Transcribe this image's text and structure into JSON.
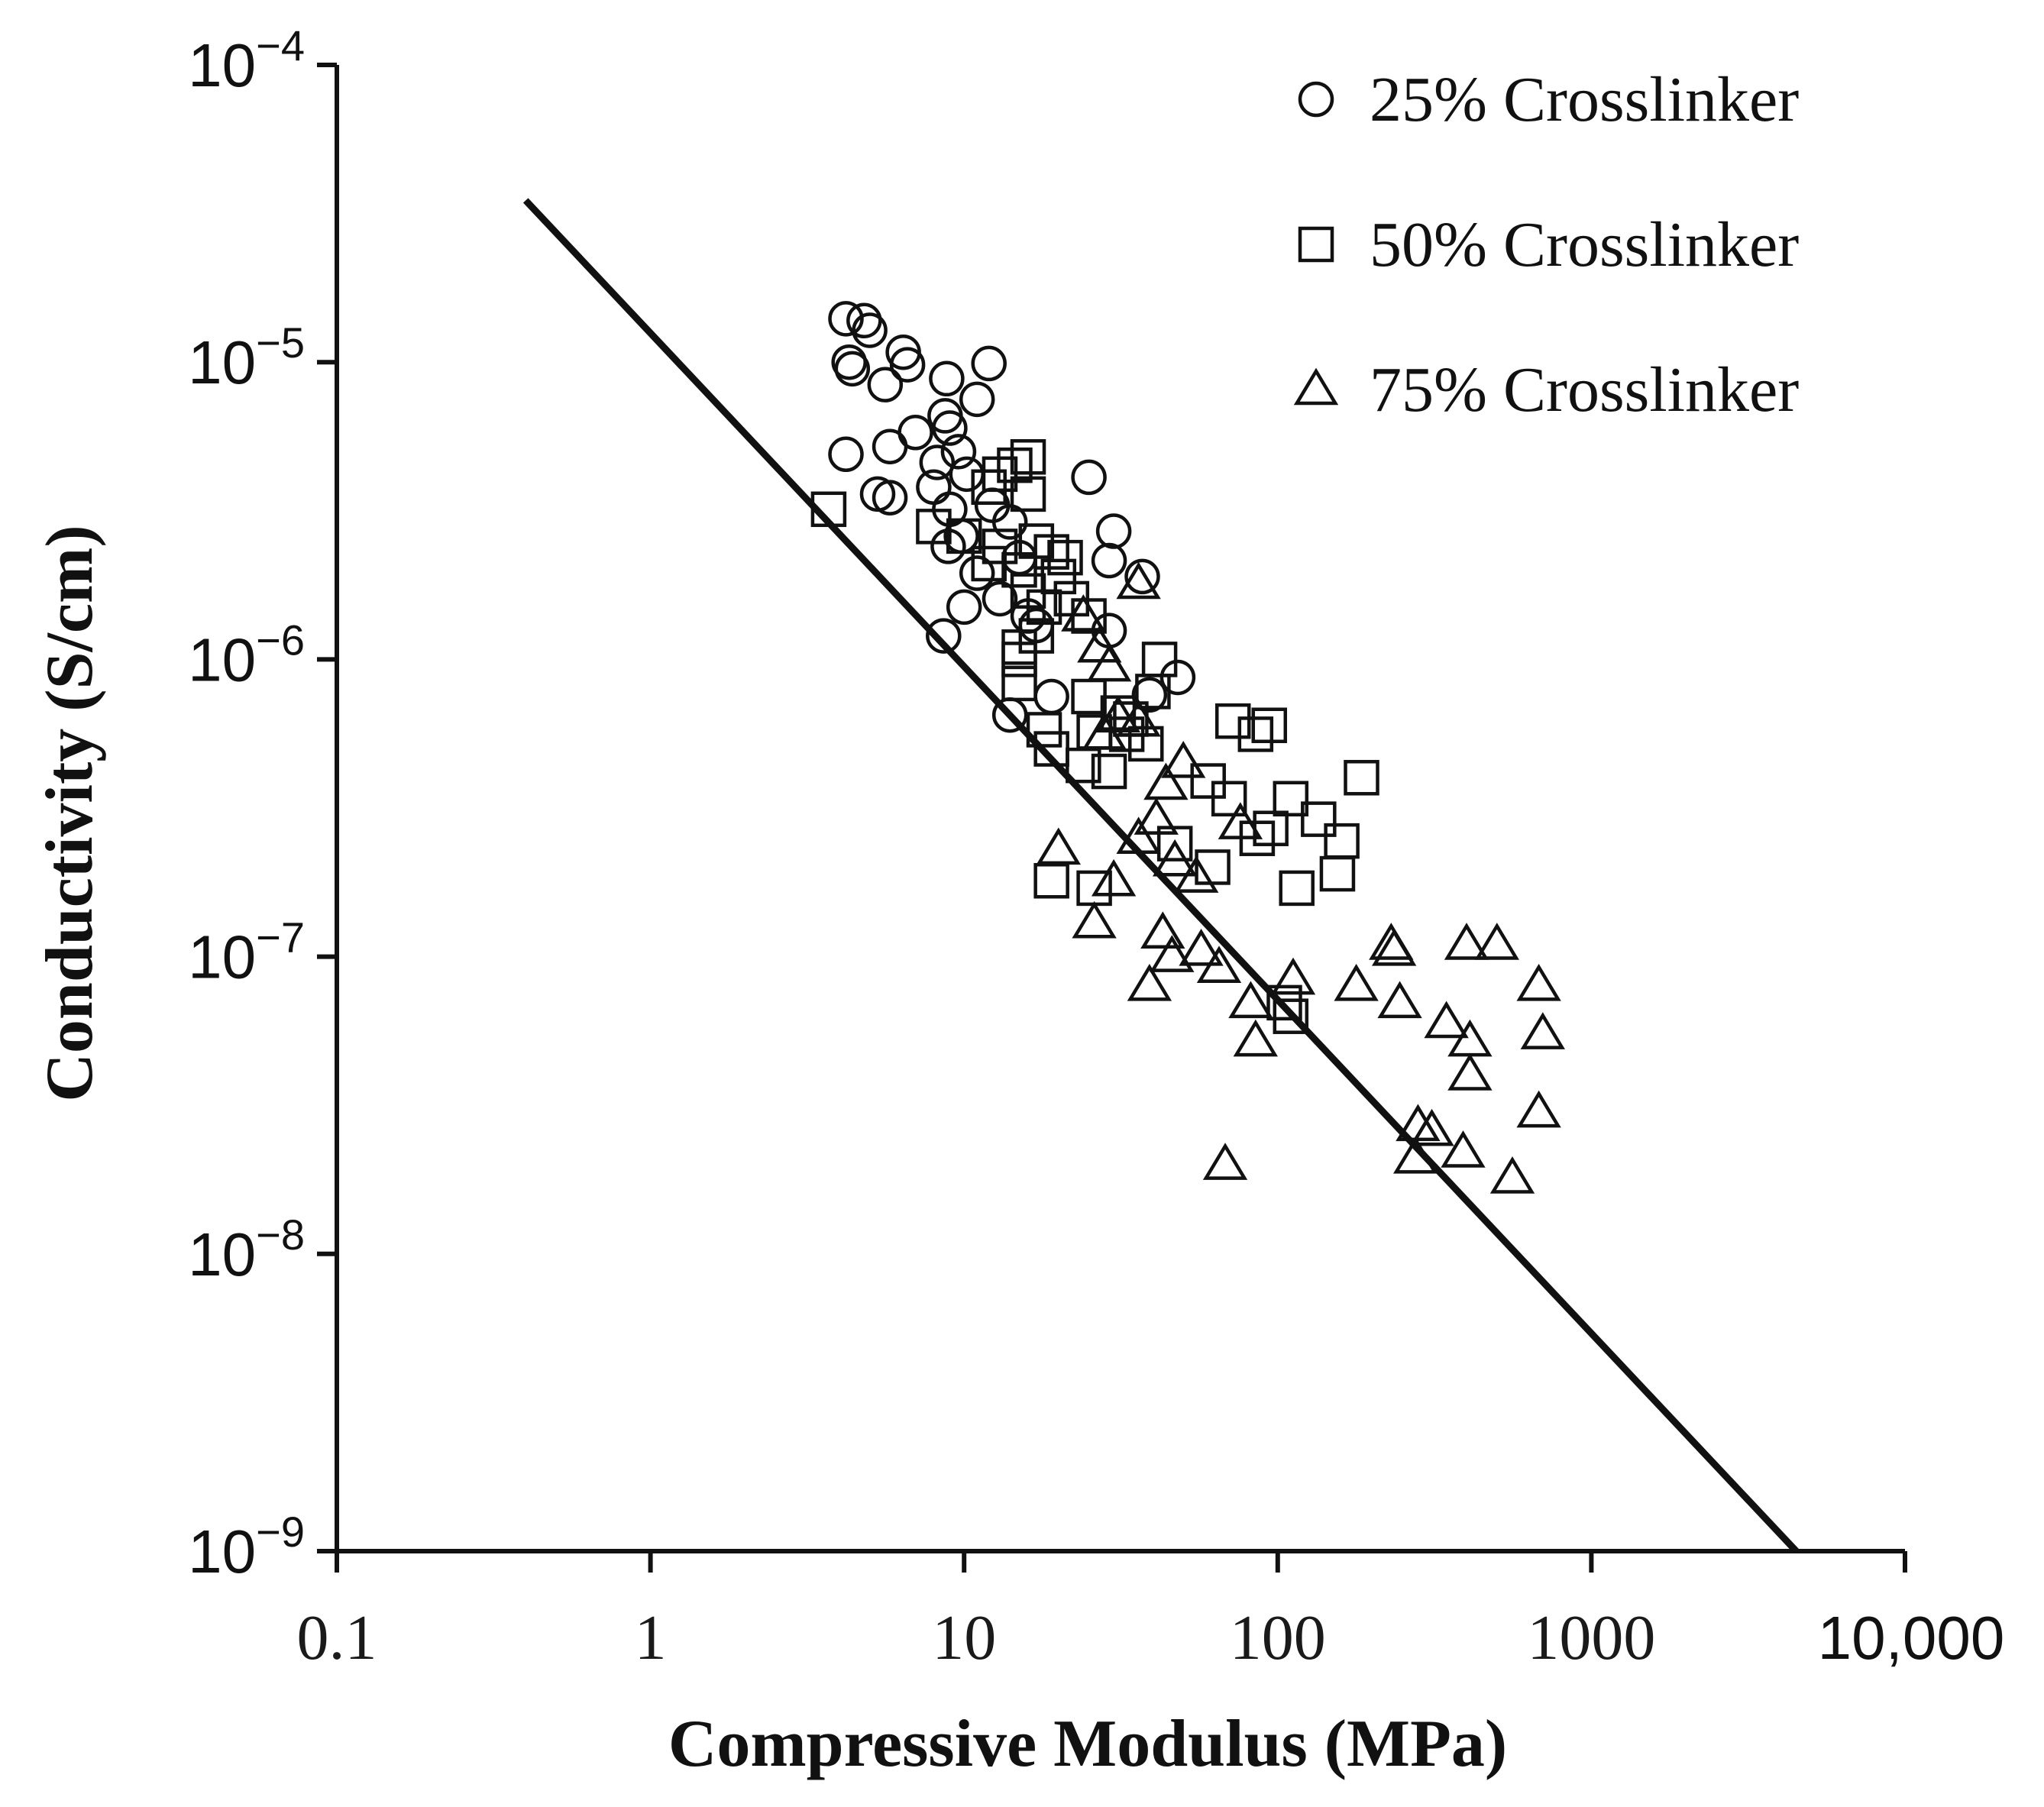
{
  "chart_data": {
    "type": "scatter",
    "title": "",
    "xlabel": "Compressive Modulus (MPa)",
    "ylabel": "Conductivity (S/cm)",
    "xscale": "log",
    "yscale": "log",
    "xlim": [
      0.1,
      10000
    ],
    "ylim": [
      1e-09,
      0.0001
    ],
    "grid": false,
    "legend_position": "top-right",
    "x_ticks": [
      {
        "value": 0.1,
        "label": "0.1"
      },
      {
        "value": 1,
        "label": "1"
      },
      {
        "value": 10,
        "label": "10"
      },
      {
        "value": 100,
        "label": "100"
      },
      {
        "value": 1000,
        "label": "1000"
      },
      {
        "value": 10000,
        "label": "10,000"
      }
    ],
    "y_ticks": [
      {
        "value": 1e-09,
        "base": "10",
        "exp": "−9"
      },
      {
        "value": 1e-08,
        "base": "10",
        "exp": "−8"
      },
      {
        "value": 1e-07,
        "base": "10",
        "exp": "−7"
      },
      {
        "value": 1e-06,
        "base": "10",
        "exp": "−6"
      },
      {
        "value": 1e-05,
        "base": "10",
        "exp": "−5"
      },
      {
        "value": 0.0001,
        "base": "10",
        "exp": "−4"
      }
    ],
    "fit_line": {
      "x": [
        0.4,
        4500
      ],
      "y": [
        3.5e-05,
        1e-09
      ]
    },
    "series": [
      {
        "name": "25% Crosslinker",
        "marker": "circle",
        "points": [
          [
            4.2,
            1.4e-05
          ],
          [
            4.8,
            1.38e-05
          ],
          [
            5.0,
            1.28e-05
          ],
          [
            4.3,
            1e-05
          ],
          [
            4.4,
            9.5e-06
          ],
          [
            6.4,
            1.08e-05
          ],
          [
            6.6,
            9.8e-06
          ],
          [
            12.0,
            9.9e-06
          ],
          [
            5.6,
            8.4e-06
          ],
          [
            8.8,
            8.8e-06
          ],
          [
            11.0,
            7.5e-06
          ],
          [
            8.7,
            6.6e-06
          ],
          [
            9.0,
            6e-06
          ],
          [
            7.0,
            5.8e-06
          ],
          [
            5.8,
            5.2e-06
          ],
          [
            4.2,
            4.9e-06
          ],
          [
            8.2,
            4.6e-06
          ],
          [
            9.6,
            5e-06
          ],
          [
            10.2,
            4.2e-06
          ],
          [
            25.0,
            4.1e-06
          ],
          [
            8.0,
            3.8e-06
          ],
          [
            5.3,
            3.6e-06
          ],
          [
            5.8,
            3.5e-06
          ],
          [
            9.0,
            3.2e-06
          ],
          [
            12.3,
            3.3e-06
          ],
          [
            14.0,
            2.9e-06
          ],
          [
            9.8,
            2.6e-06
          ],
          [
            8.9,
            2.4e-06
          ],
          [
            30.0,
            2.7e-06
          ],
          [
            29.0,
            2.15e-06
          ],
          [
            37.0,
            1.9e-06
          ],
          [
            15.0,
            2.2e-06
          ],
          [
            11.0,
            1.95e-06
          ],
          [
            13.0,
            1.6e-06
          ],
          [
            10.0,
            1.5e-06
          ],
          [
            17.0,
            1.3e-06
          ],
          [
            29.0,
            1.25e-06
          ],
          [
            8.6,
            1.2e-06
          ],
          [
            48.0,
            8.7e-07
          ],
          [
            39.0,
            7.6e-07
          ],
          [
            19.0,
            7.5e-07
          ],
          [
            14.0,
            6.5e-07
          ],
          [
            16.0,
            1.4e-06
          ]
        ]
      },
      {
        "name": "50% Crosslinker",
        "marker": "square",
        "points": [
          [
            3.7,
            3.2e-06
          ],
          [
            16.0,
            4.8e-06
          ],
          [
            14.5,
            4.5e-06
          ],
          [
            13.0,
            4.2e-06
          ],
          [
            12.0,
            3.8e-06
          ],
          [
            16.0,
            3.6e-06
          ],
          [
            8.0,
            2.8e-06
          ],
          [
            10.0,
            2.6e-06
          ],
          [
            13.0,
            2.4e-06
          ],
          [
            17.0,
            2.5e-06
          ],
          [
            19.0,
            2.3e-06
          ],
          [
            21.0,
            2.2e-06
          ],
          [
            12.0,
            2.1e-06
          ],
          [
            15.0,
            2e-06
          ],
          [
            20.0,
            1.9e-06
          ],
          [
            16.0,
            1.7e-06
          ],
          [
            22.0,
            1.6e-06
          ],
          [
            18.0,
            1.5e-06
          ],
          [
            25.0,
            1.4e-06
          ],
          [
            17.0,
            1.2e-06
          ],
          [
            15.0,
            1.1e-06
          ],
          [
            15.0,
            1e-06
          ],
          [
            42.0,
            1e-06
          ],
          [
            15.0,
            8.3e-07
          ],
          [
            25.0,
            7.5e-07
          ],
          [
            40.0,
            7.8e-07
          ],
          [
            31.0,
            6.6e-07
          ],
          [
            34.0,
            6.3e-07
          ],
          [
            18.0,
            5.8e-07
          ],
          [
            26.0,
            5.7e-07
          ],
          [
            33.0,
            5.6e-07
          ],
          [
            38.0,
            5.2e-07
          ],
          [
            19.0,
            5e-07
          ],
          [
            24.0,
            4.4e-07
          ],
          [
            29.0,
            4.2e-07
          ],
          [
            72.0,
            6.2e-07
          ],
          [
            94.0,
            6e-07
          ],
          [
            85.0,
            5.6e-07
          ],
          [
            185.0,
            4e-07
          ],
          [
            60.0,
            3.9e-07
          ],
          [
            70.0,
            3.4e-07
          ],
          [
            110.0,
            3.4e-07
          ],
          [
            135.0,
            2.9e-07
          ],
          [
            47.0,
            2.4e-07
          ],
          [
            95.0,
            2.7e-07
          ],
          [
            86.0,
            2.5e-07
          ],
          [
            160.0,
            2.45e-07
          ],
          [
            62.0,
            2e-07
          ],
          [
            155.0,
            1.9e-07
          ],
          [
            19.0,
            1.8e-07
          ],
          [
            26.0,
            1.7e-07
          ],
          [
            115.0,
            1.7e-07
          ],
          [
            110.0,
            6.3e-08
          ],
          [
            105.0,
            7e-08
          ]
        ]
      },
      {
        "name": "75% Crosslinker",
        "marker": "triangle",
        "points": [
          [
            36.0,
            1.8e-06
          ],
          [
            24.0,
            1.4e-06
          ],
          [
            27.0,
            1.1e-06
          ],
          [
            29.0,
            9.5e-07
          ],
          [
            31.0,
            6.4e-07
          ],
          [
            36.0,
            6.2e-07
          ],
          [
            28.0,
            5.6e-07
          ],
          [
            50.0,
            4.5e-07
          ],
          [
            44.0,
            3.8e-07
          ],
          [
            41.0,
            2.9e-07
          ],
          [
            36.0,
            2.5e-07
          ],
          [
            20.0,
            2.3e-07
          ],
          [
            47.0,
            2.1e-07
          ],
          [
            55.0,
            1.85e-07
          ],
          [
            30.0,
            1.8e-07
          ],
          [
            76.0,
            2.8e-07
          ],
          [
            26.0,
            1.3e-07
          ],
          [
            43.0,
            1.2e-07
          ],
          [
            57.0,
            1.05e-07
          ],
          [
            46.0,
            1e-07
          ],
          [
            65.0,
            9.2e-08
          ],
          [
            39.0,
            8e-08
          ],
          [
            112.0,
            8.4e-08
          ],
          [
            82.0,
            7e-08
          ],
          [
            85.0,
            5.2e-08
          ],
          [
            230.0,
            1.1e-07
          ],
          [
            235.0,
            1.05e-07
          ],
          [
            400.0,
            1.1e-07
          ],
          [
            500.0,
            1.1e-07
          ],
          [
            178.0,
            8e-08
          ],
          [
            245.0,
            7e-08
          ],
          [
            680.0,
            8e-08
          ],
          [
            345.0,
            6e-08
          ],
          [
            410.0,
            5.2e-08
          ],
          [
            700.0,
            5.5e-08
          ],
          [
            410.0,
            4e-08
          ],
          [
            680.0,
            3e-08
          ],
          [
            280.0,
            2.7e-08
          ],
          [
            310.0,
            2.6e-08
          ],
          [
            390.0,
            2.2e-08
          ],
          [
            275.0,
            2.1e-08
          ],
          [
            68.0,
            2e-08
          ],
          [
            560.0,
            1.8e-08
          ]
        ]
      }
    ]
  }
}
